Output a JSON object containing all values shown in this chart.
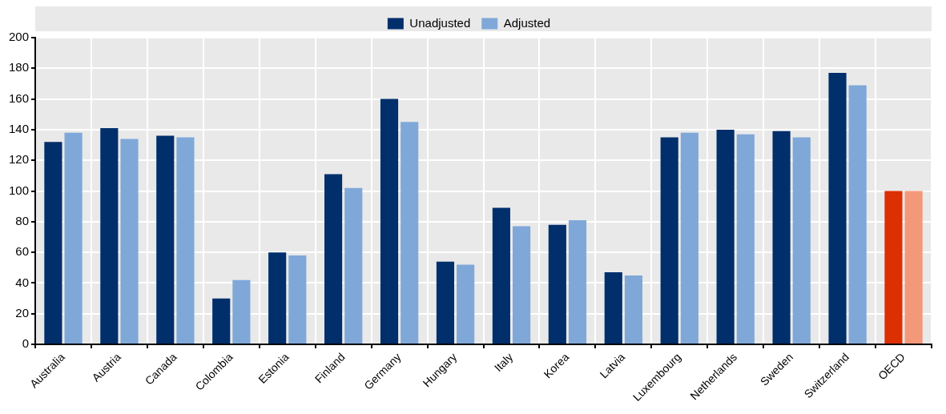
{
  "chart_data": {
    "type": "bar",
    "categories": [
      "Australia",
      "Austria",
      "Canada",
      "Colombia",
      "Estonia",
      "Finland",
      "Germany",
      "Hungary",
      "Italy",
      "Korea",
      "Latvia",
      "Luxembourg",
      "Netherlands",
      "Sweden",
      "Switzerland",
      "OECD"
    ],
    "series": [
      {
        "name": "Unadjusted",
        "color": "#002f6c",
        "colors": [
          "#002f6c",
          "#002f6c",
          "#002f6c",
          "#002f6c",
          "#002f6c",
          "#002f6c",
          "#002f6c",
          "#002f6c",
          "#002f6c",
          "#002f6c",
          "#002f6c",
          "#002f6c",
          "#002f6c",
          "#002f6c",
          "#002f6c",
          "#dc2f02"
        ],
        "values": [
          132,
          141,
          136,
          30,
          60,
          111,
          160,
          54,
          89,
          78,
          47,
          135,
          140,
          139,
          177,
          100
        ]
      },
      {
        "name": "Adjusted",
        "color": "#7fa8d9",
        "colors": [
          "#7fa8d9",
          "#7fa8d9",
          "#7fa8d9",
          "#7fa8d9",
          "#7fa8d9",
          "#7fa8d9",
          "#7fa8d9",
          "#7fa8d9",
          "#7fa8d9",
          "#7fa8d9",
          "#7fa8d9",
          "#7fa8d9",
          "#7fa8d9",
          "#7fa8d9",
          "#7fa8d9",
          "#f4987a"
        ],
        "values": [
          138,
          134,
          135,
          42,
          58,
          102,
          145,
          52,
          77,
          81,
          45,
          138,
          137,
          135,
          169,
          100
        ]
      }
    ],
    "ylim": [
      0,
      200
    ],
    "yticks": [
      0,
      20,
      40,
      60,
      80,
      100,
      120,
      140,
      160,
      180,
      200
    ],
    "grid": true,
    "legend": "top"
  }
}
